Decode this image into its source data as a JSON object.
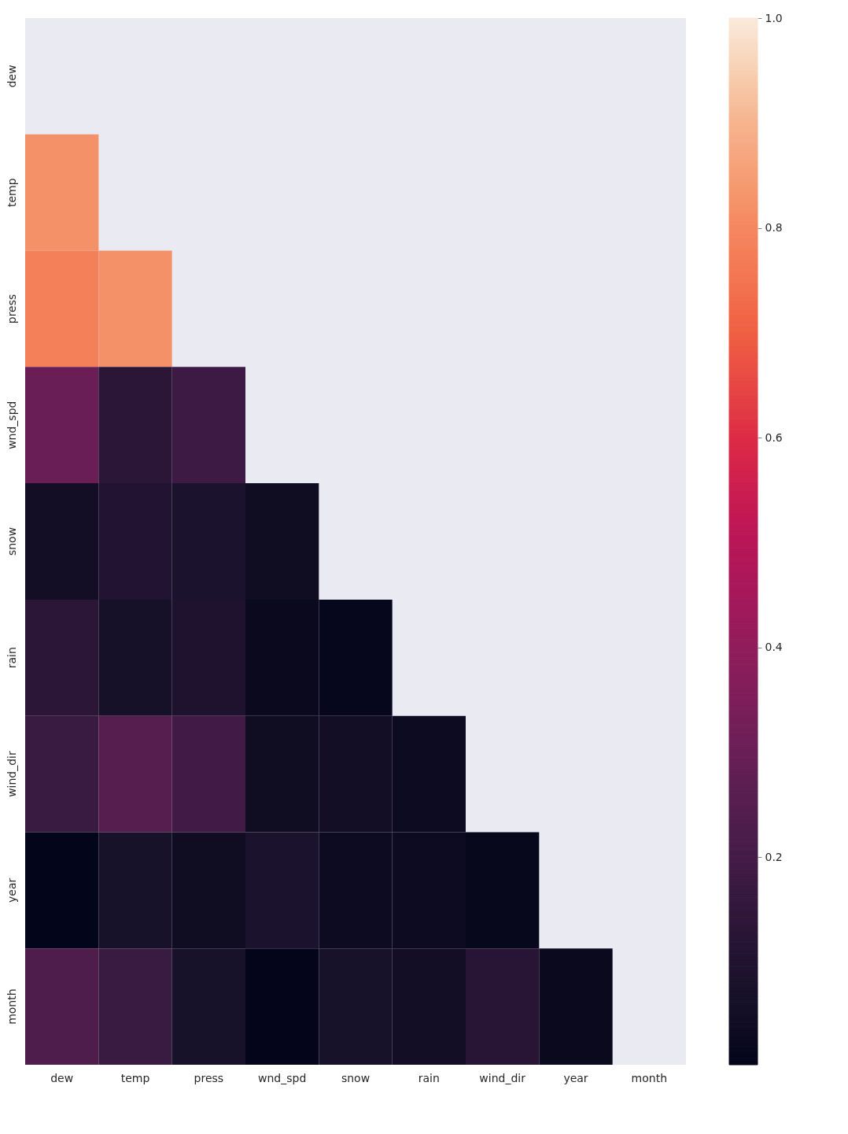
{
  "chart_data": {
    "type": "heatmap",
    "categories": [
      "dew",
      "temp",
      "press",
      "wnd_spd",
      "snow",
      "rain",
      "wind_dir",
      "year",
      "month"
    ],
    "y_categories": [
      "dew",
      "temp",
      "press",
      "wnd_spd",
      "snow",
      "rain",
      "wind_dir",
      "year",
      "month"
    ],
    "cells": [
      [
        null,
        null,
        null,
        null,
        null,
        null,
        null,
        null,
        null
      ],
      [
        0.82,
        null,
        null,
        null,
        null,
        null,
        null,
        null,
        null
      ],
      [
        0.78,
        0.82,
        null,
        null,
        null,
        null,
        null,
        null,
        null
      ],
      [
        0.3,
        0.13,
        0.18,
        null,
        null,
        null,
        null,
        null,
        null
      ],
      [
        0.05,
        0.1,
        0.08,
        0.04,
        null,
        null,
        null,
        null,
        null
      ],
      [
        0.13,
        0.06,
        0.09,
        0.02,
        0.01,
        null,
        null,
        null,
        null
      ],
      [
        0.17,
        0.25,
        0.19,
        0.04,
        0.05,
        0.03,
        null,
        null,
        null
      ],
      [
        0.002,
        0.07,
        0.04,
        0.08,
        0.03,
        0.03,
        0.015,
        null,
        null
      ],
      [
        0.23,
        0.17,
        0.07,
        0.004,
        0.07,
        0.05,
        0.12,
        0.02,
        null
      ]
    ],
    "clim": [
      0.002,
      1.0
    ],
    "cticks": [
      0.2,
      0.4,
      0.6,
      0.8,
      {
        "value": 1,
        "label": "1.0"
      }
    ]
  }
}
